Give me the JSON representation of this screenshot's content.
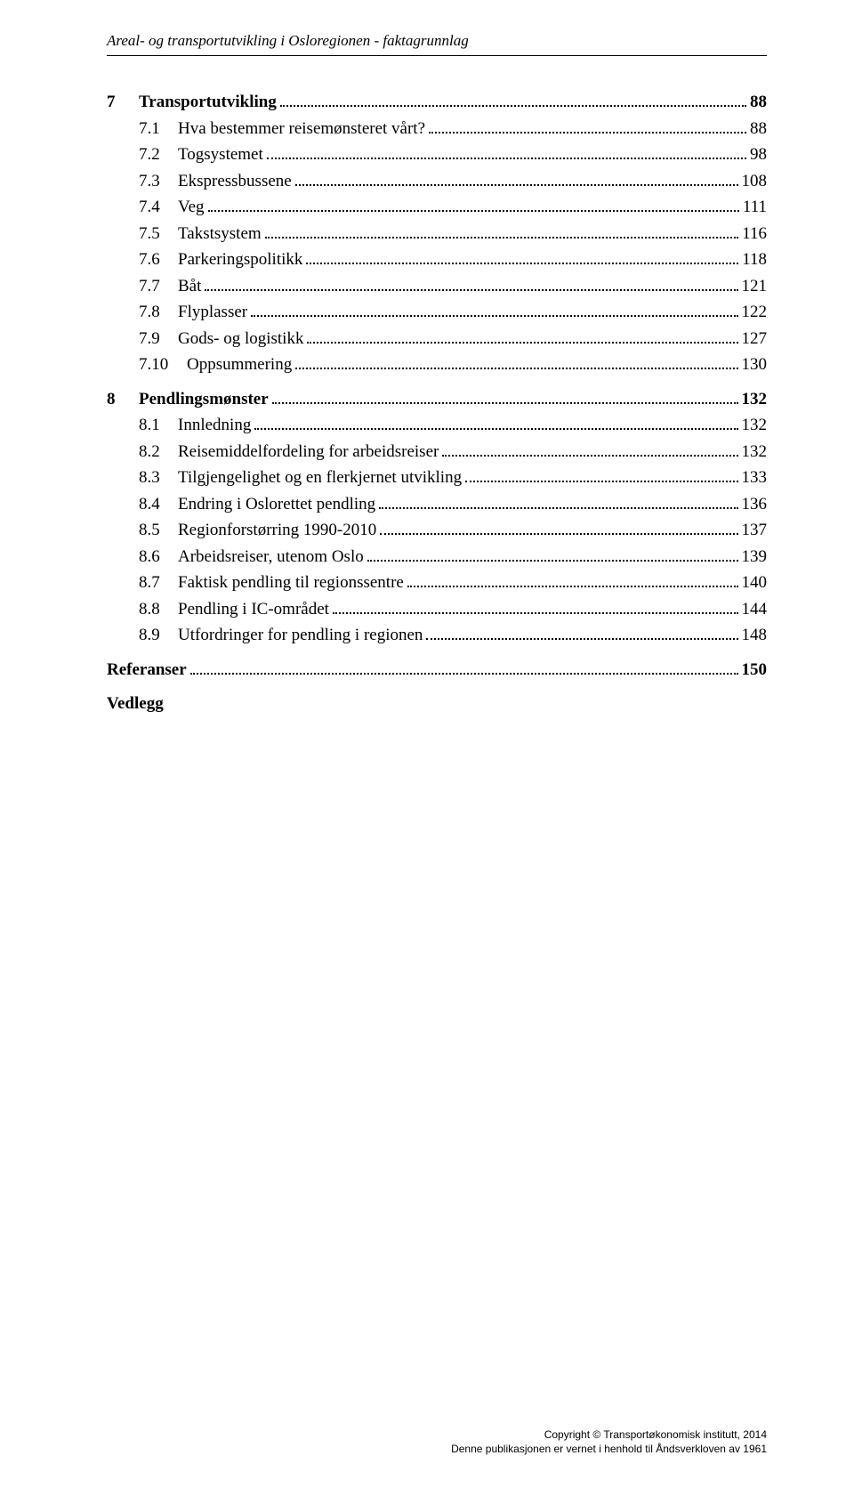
{
  "header": {
    "title": "Areal- og transportutvikling i Osloregionen - faktagrunnlag"
  },
  "toc": {
    "section7": {
      "num": "7",
      "label": "Transportutvikling",
      "page": "88"
    },
    "s7_1": {
      "num": "7.1",
      "label": "Hva bestemmer reisemønsteret vårt?",
      "page": "88"
    },
    "s7_2": {
      "num": "7.2",
      "label": "Togsystemet",
      "page": "98"
    },
    "s7_3": {
      "num": "7.3",
      "label": "Ekspressbussene",
      "page": "108"
    },
    "s7_4": {
      "num": "7.4",
      "label": "Veg",
      "page": "111"
    },
    "s7_5": {
      "num": "7.5",
      "label": "Takstsystem",
      "page": "116"
    },
    "s7_6": {
      "num": "7.6",
      "label": "Parkeringspolitikk",
      "page": "118"
    },
    "s7_7": {
      "num": "7.7",
      "label": "Båt",
      "page": "121"
    },
    "s7_8": {
      "num": "7.8",
      "label": "Flyplasser",
      "page": "122"
    },
    "s7_9": {
      "num": "7.9",
      "label": "Gods- og logistikk",
      "page": "127"
    },
    "s7_10": {
      "num": "7.10",
      "label": "Oppsummering",
      "page": "130"
    },
    "section8": {
      "num": "8",
      "label": "Pendlingsmønster",
      "page": "132"
    },
    "s8_1": {
      "num": "8.1",
      "label": "Innledning",
      "page": "132"
    },
    "s8_2": {
      "num": "8.2",
      "label": "Reisemiddelfordeling for arbeidsreiser",
      "page": "132"
    },
    "s8_3": {
      "num": "8.3",
      "label": "Tilgjengelighet og en flerkjernet utvikling",
      "page": "133"
    },
    "s8_4": {
      "num": "8.4",
      "label": "Endring i Oslorettet pendling",
      "page": "136"
    },
    "s8_5": {
      "num": "8.5",
      "label": "Regionforstørring 1990-2010",
      "page": "137"
    },
    "s8_6": {
      "num": "8.6",
      "label": "Arbeidsreiser, utenom Oslo",
      "page": "139"
    },
    "s8_7": {
      "num": "8.7",
      "label": "Faktisk pendling til regionssentre",
      "page": "140"
    },
    "s8_8": {
      "num": "8.8",
      "label": "Pendling i IC-området",
      "page": "144"
    },
    "s8_9": {
      "num": "8.9",
      "label": "Utfordringer for pendling i regionen",
      "page": "148"
    },
    "referanser": {
      "label": "Referanser",
      "page": "150"
    },
    "vedlegg": {
      "label": "Vedlegg"
    }
  },
  "footer": {
    "line1": "Copyright © Transportøkonomisk institutt, 2014",
    "line2": "Denne publikasjonen er vernet i henhold til Åndsverkloven av 1961"
  }
}
